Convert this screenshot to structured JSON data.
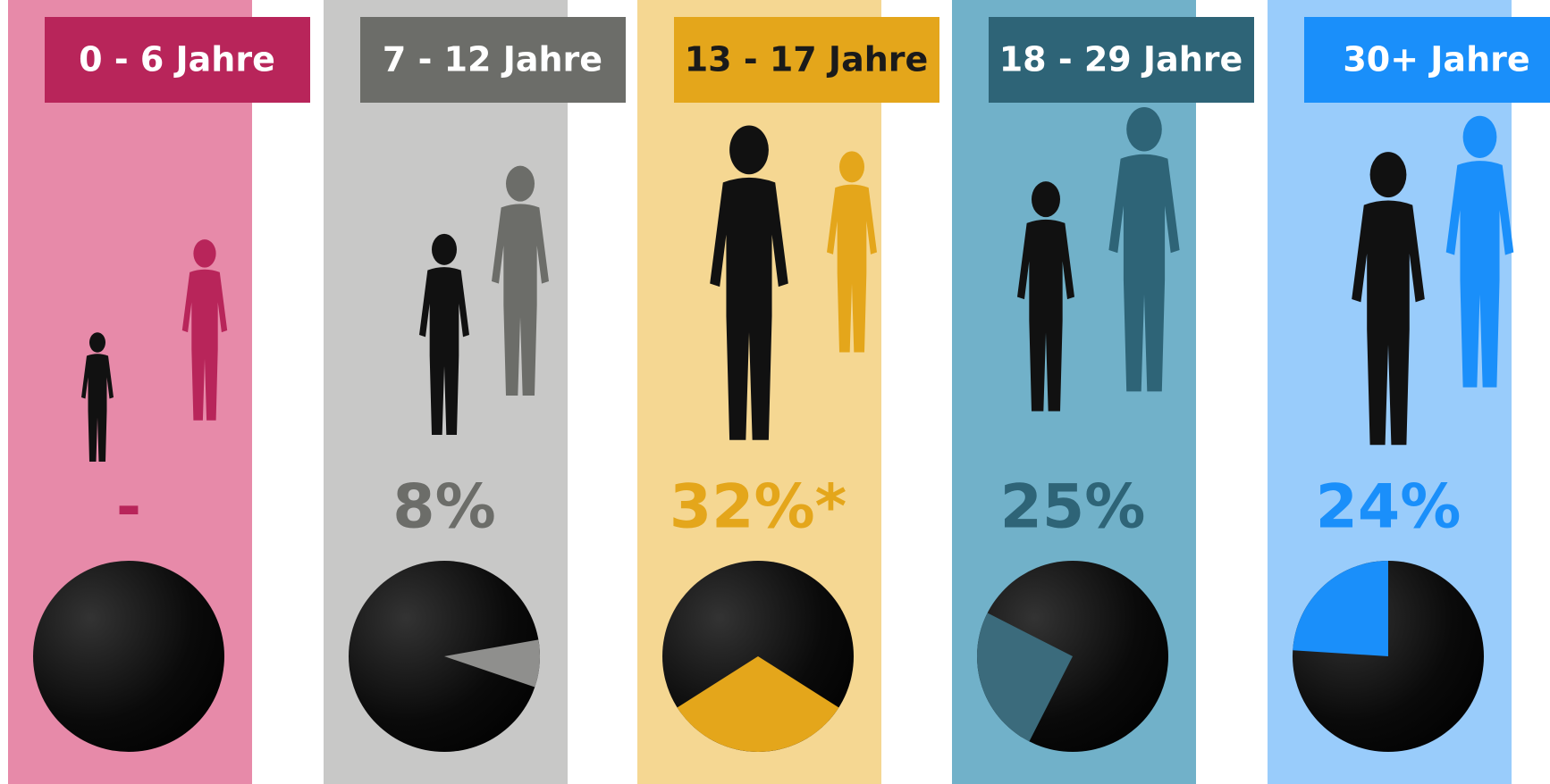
{
  "chart_data": [
    {
      "type": "pie",
      "title": "0 - 6 Jahre",
      "values": [
        null
      ],
      "value_labels": [
        "-"
      ],
      "color": "#b8255a",
      "background": "#e78aa9",
      "title_color": "#ffffff"
    },
    {
      "type": "pie",
      "title": "7 - 12 Jahre",
      "values": [
        8
      ],
      "value_labels": [
        "8%"
      ],
      "color": "#6c6d69",
      "slice_color": "#8f8f8d",
      "background": "#c8c8c7",
      "title_color": "#ffffff"
    },
    {
      "type": "pie",
      "title": "13 - 17 Jahre",
      "values": [
        32
      ],
      "value_labels": [
        "32%*"
      ],
      "color": "#e4a61b",
      "background": "#f5d792",
      "title_color": "#1a1a1a"
    },
    {
      "type": "pie",
      "title": "18 - 29 Jahre",
      "values": [
        25
      ],
      "value_labels": [
        "25%"
      ],
      "color": "#2e6477",
      "slice_color": "#3b6b7c",
      "background": "#71b1c9",
      "title_color": "#ffffff"
    },
    {
      "type": "pie",
      "title": "30+ Jahre",
      "values": [
        24
      ],
      "value_labels": [
        "24%"
      ],
      "color": "#1a8ffa",
      "background": "#99ccfb",
      "title_color": "#ffffff"
    }
  ]
}
